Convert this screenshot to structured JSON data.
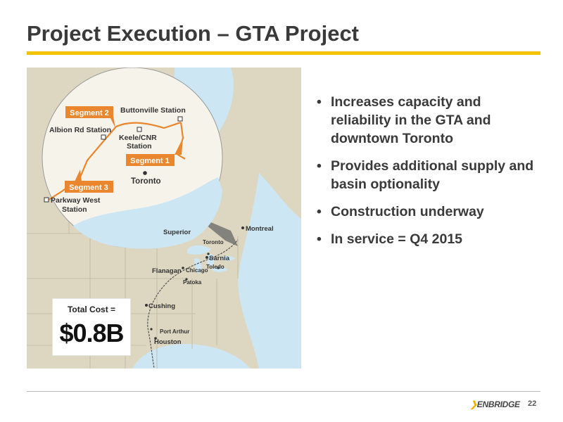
{
  "slide": {
    "title": "Project Execution – GTA Project",
    "page_number": "22",
    "brand": "ENBRIDGE",
    "colors": {
      "accent": "#f3c300",
      "segment": "#e9862e",
      "water": "#cce6f3",
      "land": "#ddd6c0",
      "text": "#3a3a3a"
    }
  },
  "bullets": [
    "Increases capacity and reliability in the GTA and downtown Toronto",
    "Provides additional supply and basin optionality",
    "Construction underway",
    "In service = Q4 2015"
  ],
  "bullet_glyph": "•",
  "cost": {
    "label": "Total Cost =",
    "value": "$0.8B"
  },
  "map": {
    "inset": {
      "stations": [
        "Buttonville Station",
        "Albion Rd Station",
        "Keele/CNR",
        "Station",
        "Parkway West",
        "Station",
        "Toronto"
      ],
      "segments": [
        "Segment 1",
        "Segment 2",
        "Segment 3"
      ]
    },
    "cities": [
      "Superior",
      "Montreal",
      "Toronto",
      "Sarnia",
      "Toledo",
      "Flanagan",
      "Chicago",
      "Patoka",
      "Cushing",
      "Port Arthur",
      "Houston"
    ]
  }
}
